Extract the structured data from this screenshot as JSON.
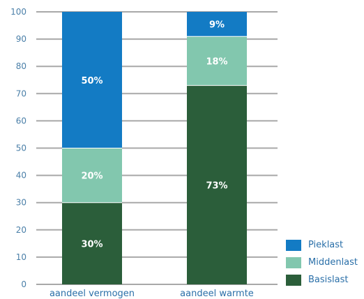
{
  "chart_data": {
    "type": "bar",
    "stacked": true,
    "categories": [
      "aandeel vermogen",
      "aandeel warmte"
    ],
    "series": [
      {
        "name": "Basislast",
        "values": [
          30,
          73
        ],
        "labels": [
          "30%",
          "73%"
        ],
        "color": "#2b5e3a"
      },
      {
        "name": "Middenlast",
        "values": [
          20,
          18
        ],
        "labels": [
          "20%",
          "18%"
        ],
        "color": "#82c7ae"
      },
      {
        "name": "Pieklast",
        "values": [
          50,
          9
        ],
        "labels": [
          "50%",
          "9%"
        ],
        "color": "#137bc4"
      }
    ],
    "yticks": [
      "0",
      "10",
      "20",
      "30",
      "40",
      "50",
      "60",
      "70",
      "80",
      "90",
      "100"
    ],
    "ylim": [
      0,
      100
    ],
    "grid": true,
    "legend_position": "bottom-right"
  },
  "legend": {
    "items": [
      {
        "label": "Pieklast",
        "color": "#137bc4"
      },
      {
        "label": "Middenlast",
        "color": "#82c7ae"
      },
      {
        "label": "Basislast",
        "color": "#2b5e3a"
      }
    ]
  }
}
